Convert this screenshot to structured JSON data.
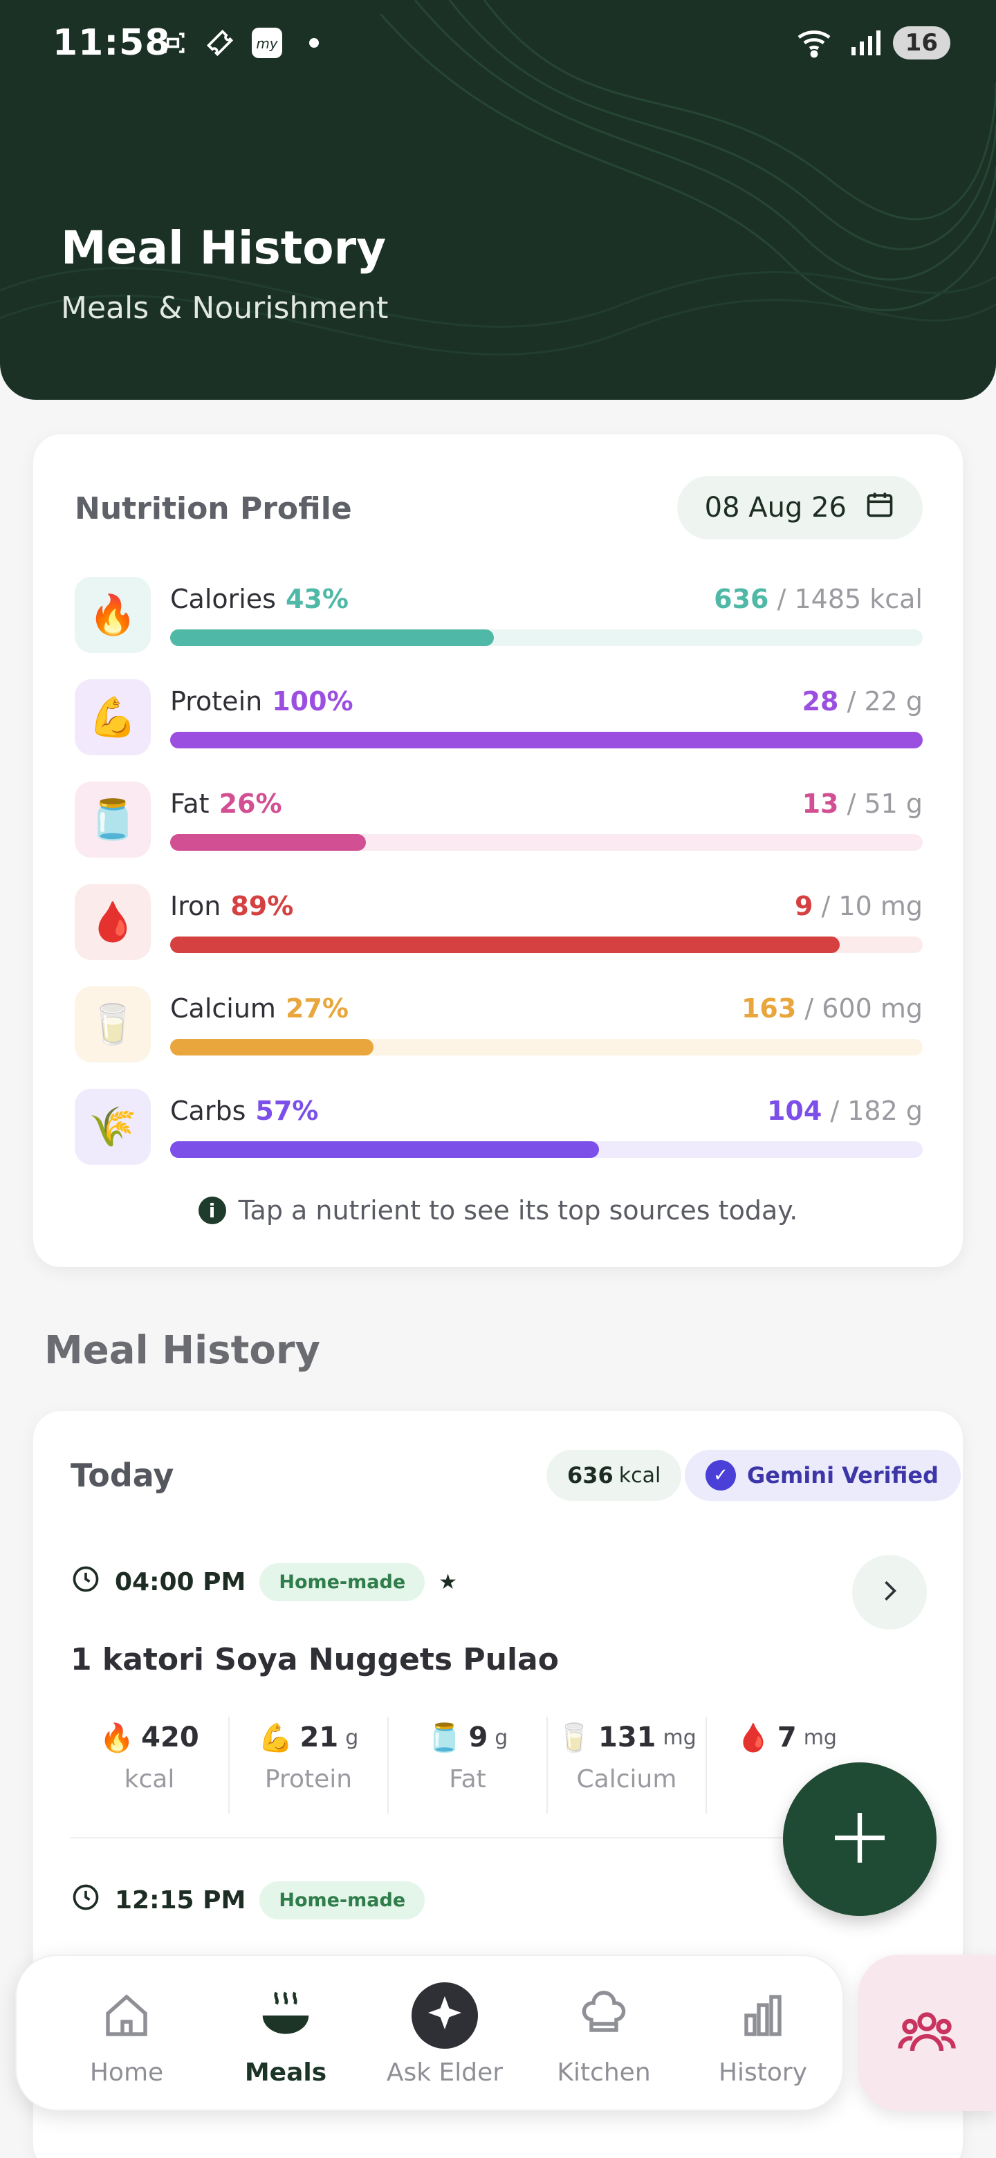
{
  "status_bar": {
    "time": "11:58",
    "battery": "16"
  },
  "header": {
    "title": "Meal History",
    "subtitle": "Meals & Nourishment"
  },
  "nutrition": {
    "title": "Nutrition Profile",
    "date": "08 Aug 26",
    "nutrients": [
      {
        "name": "Calories",
        "pct_label": "43%",
        "consumed": "636",
        "target": " / 1485 kcal",
        "fraction": 0.43,
        "color": "#4fb8a6",
        "track": "#e9f6f4",
        "icon_bg": "#e9f6f4",
        "icon": "fire-icon"
      },
      {
        "name": "Protein",
        "pct_label": "100%",
        "consumed": "28",
        "target": " / 22 g",
        "fraction": 1.0,
        "color": "#9b4fe0",
        "track": "#f2eafc",
        "icon_bg": "#f2eafc",
        "icon": "flexed-arm-icon"
      },
      {
        "name": "Fat",
        "pct_label": "26%",
        "consumed": "13",
        "target": " / 51 g",
        "fraction": 0.26,
        "color": "#d14f92",
        "track": "#fbeaf2",
        "icon_bg": "#fbeaf2",
        "icon": "oil-bottle-icon"
      },
      {
        "name": "Iron",
        "pct_label": "89%",
        "consumed": "9",
        "target": " / 10 mg",
        "fraction": 0.89,
        "color": "#d54040",
        "track": "#fbebeb",
        "icon_bg": "#fbebeb",
        "icon": "blood-drop-icon"
      },
      {
        "name": "Calcium",
        "pct_label": "27%",
        "consumed": "163",
        "target": " / 600 mg",
        "fraction": 0.27,
        "color": "#e8a63c",
        "track": "#fdf4e6",
        "icon_bg": "#fdf4e6",
        "icon": "milk-glass-icon"
      },
      {
        "name": "Carbs",
        "pct_label": "57%",
        "consumed": "104",
        "target": " / 182 g",
        "fraction": 0.57,
        "color": "#7b4fe8",
        "track": "#efebfc",
        "icon_bg": "#efebfc",
        "icon": "wheat-icon"
      }
    ],
    "hint": "Tap a nutrient to see its top sources today."
  },
  "history": {
    "title": "Meal History",
    "day_label": "Today",
    "day_kcal": "636",
    "kcal_unit": "kcal",
    "verified_label": "Gemini Verified",
    "meals": [
      {
        "time": "04:00 PM",
        "tag": "Home-made",
        "star": "★",
        "name": "1 katori Soya Nuggets Pulao",
        "stats": [
          {
            "value": "420",
            "unit": "",
            "label": "kcal",
            "icon": "fire-icon"
          },
          {
            "value": "21",
            "unit": "g",
            "label": "Protein",
            "icon": "flexed-arm-icon"
          },
          {
            "value": "9",
            "unit": "g",
            "label": "Fat",
            "icon": "oil-bottle-icon"
          },
          {
            "value": "131",
            "unit": "mg",
            "label": "Calcium",
            "icon": "milk-glass-icon"
          },
          {
            "value": "7",
            "unit": "mg",
            "label": "",
            "icon": "blood-drop-icon"
          }
        ]
      },
      {
        "time": "12:15 PM",
        "tag": "Home-made"
      }
    ]
  },
  "nav": {
    "items": [
      {
        "label": "Home",
        "icon": "home-icon"
      },
      {
        "label": "Meals",
        "icon": "bowl-icon",
        "active": true
      },
      {
        "label": "Ask Elder",
        "icon": "sparkle-icon"
      },
      {
        "label": "Kitchen",
        "icon": "chef-hat-icon"
      },
      {
        "label": "History",
        "icon": "bar-chart-icon"
      }
    ]
  }
}
